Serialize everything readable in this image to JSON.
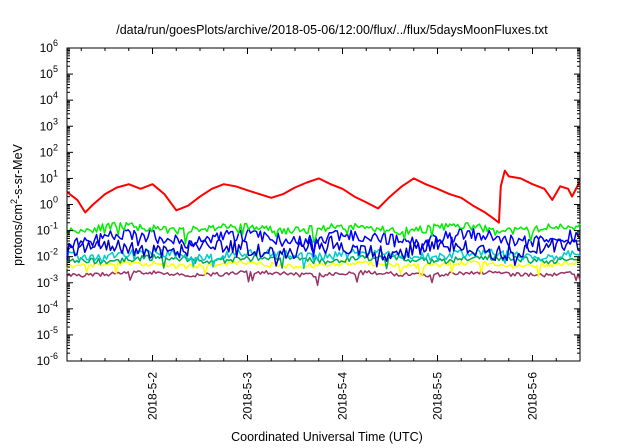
{
  "chart_data": {
    "type": "line",
    "title": "/data/run/goesPlots/archive/2018-05-06/12:00/flux/../flux/5daysMoonFluxes.txt",
    "xlabel": "Coordinated Universal Time (UTC)",
    "ylabel": {
      "base": "protons/cm",
      "sup": "2",
      "rest": "-s-sr-MeV"
    },
    "x_unit": "days (UTC)",
    "xlim": [
      "2018-05-01T02:24",
      "2018-05-06T12:00"
    ],
    "xticks": [
      "2018-5-2",
      "2018-5-3",
      "2018-5-4",
      "2018-5-5",
      "2018-5-6"
    ],
    "y_scale": "log",
    "ylim": [
      1e-06,
      1000000.0
    ],
    "yticks": [
      {
        "base": "10",
        "exp": "-6"
      },
      {
        "base": "10",
        "exp": "-5"
      },
      {
        "base": "10",
        "exp": "-4"
      },
      {
        "base": "10",
        "exp": "-3"
      },
      {
        "base": "10",
        "exp": "-2"
      },
      {
        "base": "10",
        "exp": "-1"
      },
      {
        "base": "10",
        "exp": "0"
      },
      {
        "base": "10",
        "exp": "1"
      },
      {
        "base": "10",
        "exp": "2"
      },
      {
        "base": "10",
        "exp": "3"
      },
      {
        "base": "10",
        "exp": "4"
      },
      {
        "base": "10",
        "exp": "5"
      },
      {
        "base": "10",
        "exp": "6"
      }
    ],
    "grid": false,
    "legend": "none",
    "series": [
      {
        "color": "#ff0000",
        "width": 2,
        "x": [
          "2018-05-01T02:24",
          "2018-05-01T05:00",
          "2018-05-01T07:00",
          "2018-05-01T09:00",
          "2018-05-01T12:00",
          "2018-05-01T15:00",
          "2018-05-01T18:00",
          "2018-05-01T21:00",
          "2018-05-02T00:00",
          "2018-05-02T03:00",
          "2018-05-02T06:00",
          "2018-05-02T09:00",
          "2018-05-02T12:00",
          "2018-05-02T15:00",
          "2018-05-02T18:00",
          "2018-05-02T21:00",
          "2018-05-03T00:00",
          "2018-05-03T03:00",
          "2018-05-03T06:00",
          "2018-05-03T09:00",
          "2018-05-03T12:00",
          "2018-05-03T15:00",
          "2018-05-03T18:00",
          "2018-05-03T21:00",
          "2018-05-04T00:00",
          "2018-05-04T03:00",
          "2018-05-04T06:00",
          "2018-05-04T09:00",
          "2018-05-04T12:00",
          "2018-05-04T15:00",
          "2018-05-04T18:00",
          "2018-05-04T21:00",
          "2018-05-05T00:00",
          "2018-05-05T03:00",
          "2018-05-05T06:00",
          "2018-05-05T09:00",
          "2018-05-05T12:00",
          "2018-05-05T14:00",
          "2018-05-05T15:30",
          "2018-05-05T16:00",
          "2018-05-05T17:00",
          "2018-05-05T18:00",
          "2018-05-05T21:00",
          "2018-05-06T00:00",
          "2018-05-06T03:00",
          "2018-05-06T05:00",
          "2018-05-06T07:00",
          "2018-05-06T09:00",
          "2018-05-06T10:00",
          "2018-05-06T12:00"
        ],
        "y": [
          3,
          1.5,
          0.5,
          1.0,
          2.5,
          4.5,
          6,
          4,
          6,
          2.5,
          0.6,
          0.9,
          2,
          4,
          6,
          5,
          3.5,
          2.5,
          1.8,
          2.5,
          4.5,
          7,
          10,
          6,
          4,
          2,
          1.2,
          0.7,
          2,
          5,
          10,
          6,
          4,
          2.5,
          1.8,
          0.9,
          0.5,
          0.3,
          0.2,
          5,
          20,
          12,
          10,
          6,
          4,
          1.5,
          5,
          4,
          2,
          8
        ]
      },
      {
        "color": "#00ee00",
        "width": 1.5,
        "base": 0.12,
        "amp": 0.15,
        "seed": 11
      },
      {
        "color": "#0000ff",
        "width": 1.5,
        "base": 0.05,
        "amp": 0.25,
        "seed": 23
      },
      {
        "color": "#0000cc",
        "width": 1.5,
        "base": 0.02,
        "amp": 0.3,
        "seed": 37
      },
      {
        "color": "#00cccc",
        "width": 1.5,
        "base": 0.012,
        "amp": 0.15,
        "seed": 41
      },
      {
        "color": "#00aa55",
        "width": 1.5,
        "base": 0.008,
        "amp": 0.12,
        "seed": 53
      },
      {
        "color": "#ffff00",
        "width": 1.5,
        "base": 0.005,
        "amp": 0.1,
        "seed": 67
      },
      {
        "color": "#993366",
        "width": 1.5,
        "base": 0.0022,
        "amp": 0.08,
        "seed": 79
      }
    ]
  }
}
